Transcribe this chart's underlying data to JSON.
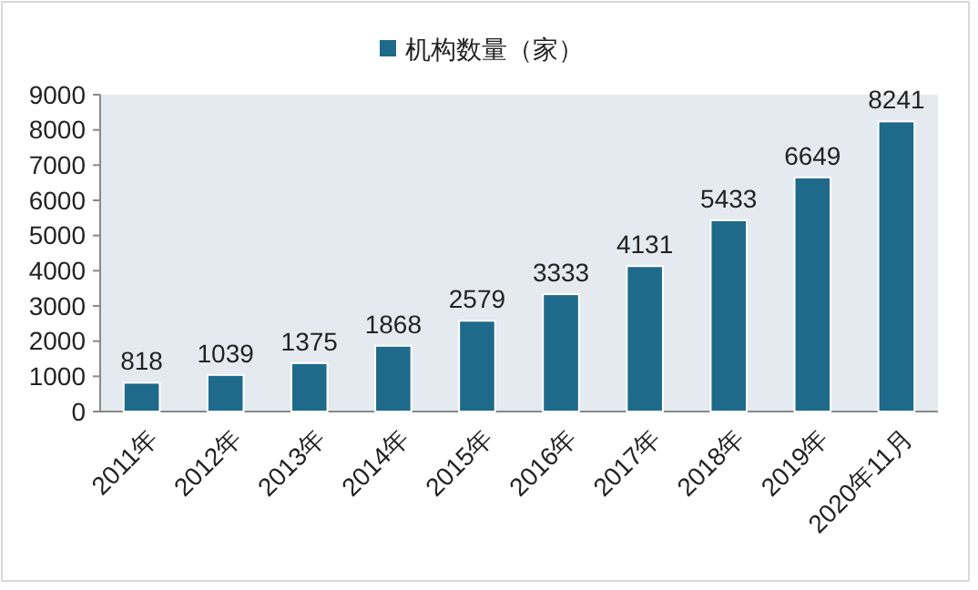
{
  "chart_data": {
    "type": "bar",
    "categories": [
      "2011年",
      "2012年",
      "2013年",
      "2014年",
      "2015年",
      "2016年",
      "2017年",
      "2018年",
      "2019年",
      "2020年11月"
    ],
    "series": [
      {
        "name": "机构数量（家）",
        "color": "#1f6a8a",
        "values": [
          818,
          1039,
          1375,
          1868,
          2579,
          3333,
          4131,
          5433,
          6649,
          8241
        ]
      }
    ],
    "ylim": [
      0,
      9000
    ],
    "yticks": [
      0,
      1000,
      2000,
      3000,
      4000,
      5000,
      6000,
      7000,
      8000,
      9000
    ],
    "data_labels": true,
    "legend": "top",
    "grid": false
  }
}
